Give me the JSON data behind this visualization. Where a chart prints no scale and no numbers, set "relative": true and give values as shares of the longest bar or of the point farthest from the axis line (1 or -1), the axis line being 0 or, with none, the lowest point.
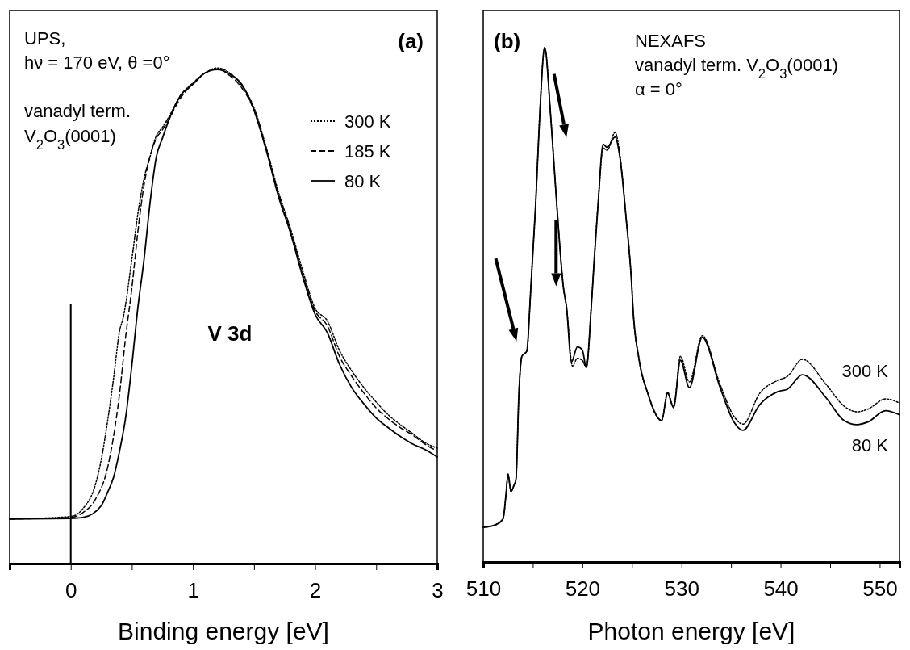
{
  "chart_data": [
    {
      "type": "line",
      "relative": true,
      "xlabel": "Binding energy [eV]",
      "xlim": [
        -0.5,
        3
      ],
      "xticks": [
        {
          "value": -0.5,
          "label": null
        },
        0,
        {
          "value": 0.5,
          "label": null
        },
        1,
        {
          "value": 1.5,
          "label": null
        },
        2,
        {
          "value": 2.5,
          "label": null
        },
        3
      ],
      "legend": "top right",
      "annotations": [
        "UPS,",
        "hν = 170 eV, θ =0°",
        "vanadyl term.",
        "V$_{2}$O$_{3}$(0001)",
        "(a)",
        "V 3d"
      ],
      "ref_lines": [
        {
          "axis": "x",
          "value": 0
        }
      ],
      "series": [
        {
          "name": "300 K",
          "color": "#000000",
          "line_style": "dotted",
          "x": [
            -0.5,
            0,
            0.1,
            0.2,
            0.25,
            0.3,
            0.35,
            0.4,
            0.43,
            0.5,
            0.55,
            0.6,
            0.65,
            0.7,
            0.75,
            0.8,
            0.9,
            1.0,
            1.1,
            1.2,
            1.3,
            1.4,
            1.5,
            1.6,
            1.7,
            1.8,
            1.9,
            2.0,
            2.1,
            2.2,
            2.3,
            2.4,
            2.5,
            2.6,
            2.7,
            2.8,
            2.9,
            3.0
          ],
          "values": [
            0.09,
            0.095,
            0.111,
            0.158,
            0.21,
            0.285,
            0.373,
            0.47,
            0.497,
            0.614,
            0.707,
            0.777,
            0.822,
            0.863,
            0.88,
            0.9,
            0.945,
            0.97,
            0.99,
            1.0,
            0.99,
            0.965,
            0.92,
            0.84,
            0.75,
            0.675,
            0.59,
            0.515,
            0.49,
            0.43,
            0.389,
            0.355,
            0.326,
            0.3,
            0.28,
            0.262,
            0.244,
            0.233
          ]
        },
        {
          "name": "185 K",
          "color": "#000000",
          "line_style": "dashed",
          "x": [
            -0.5,
            0,
            0.1,
            0.2,
            0.3,
            0.35,
            0.4,
            0.45,
            0.5,
            0.55,
            0.6,
            0.65,
            0.7,
            0.75,
            0.8,
            0.9,
            1.0,
            1.1,
            1.2,
            1.3,
            1.4,
            1.5,
            1.6,
            1.7,
            1.8,
            1.9,
            2.0,
            2.1,
            2.2,
            2.3,
            2.4,
            2.5,
            2.6,
            2.7,
            2.8,
            2.9,
            3.0
          ],
          "values": [
            0.09,
            0.093,
            0.103,
            0.129,
            0.192,
            0.256,
            0.344,
            0.459,
            0.555,
            0.671,
            0.764,
            0.822,
            0.858,
            0.875,
            0.895,
            0.94,
            0.968,
            0.99,
            0.998,
            0.985,
            0.96,
            0.915,
            0.835,
            0.745,
            0.67,
            0.582,
            0.51,
            0.48,
            0.418,
            0.378,
            0.344,
            0.314,
            0.292,
            0.274,
            0.259,
            0.241,
            0.227
          ]
        },
        {
          "name": "80 K",
          "color": "#000000",
          "line_style": "solid",
          "x": [
            -0.5,
            0,
            0.1,
            0.25,
            0.3,
            0.35,
            0.4,
            0.45,
            0.5,
            0.55,
            0.6,
            0.65,
            0.7,
            0.75,
            0.8,
            0.9,
            1.0,
            1.1,
            1.2,
            1.3,
            1.4,
            1.5,
            1.6,
            1.7,
            1.8,
            1.9,
            2.0,
            2.1,
            2.2,
            2.3,
            2.4,
            2.5,
            2.6,
            2.7,
            2.8,
            2.9,
            3.0
          ],
          "values": [
            0.09,
            0.091,
            0.093,
            0.117,
            0.143,
            0.174,
            0.228,
            0.296,
            0.4,
            0.518,
            0.614,
            0.73,
            0.82,
            0.858,
            0.893,
            0.945,
            0.967,
            0.99,
            0.997,
            0.988,
            0.967,
            0.915,
            0.834,
            0.741,
            0.666,
            0.578,
            0.503,
            0.466,
            0.402,
            0.355,
            0.322,
            0.294,
            0.274,
            0.256,
            0.241,
            0.23,
            0.215
          ]
        }
      ]
    },
    {
      "type": "line",
      "relative": true,
      "xlabel": "Photon energy [eV]",
      "xlim": [
        510,
        552
      ],
      "xticks": [
        510,
        {
          "value": 515,
          "label": null
        },
        520,
        {
          "value": 525,
          "label": null
        },
        530,
        {
          "value": 535,
          "label": null
        },
        540,
        {
          "value": 545,
          "label": null
        },
        550
      ],
      "legend": false,
      "annotations": [
        "(b)",
        "NEXAFS",
        "vanadyl term. V$_{2}$O$_{3}$(0001)",
        "α = 0°"
      ],
      "series": [
        {
          "name": "300 K",
          "color": "#000000",
          "line_style": "dotted",
          "x": [
            510,
            511.2,
            512,
            512.3,
            512.5,
            512.8,
            513.1,
            513.3,
            513.6,
            513.9,
            514.4,
            514.7,
            514.8,
            515.3,
            515.7,
            516.2,
            516.8,
            517.4,
            518.1,
            518.4,
            519,
            519.5,
            520,
            520.4,
            520.9,
            521.2,
            521.6,
            522.1,
            522.5,
            523.3,
            523.8,
            524.4,
            525,
            525.1,
            525.7,
            526.6,
            528,
            528.6,
            529.2,
            529.9,
            530.8,
            532.1,
            533.9,
            535.3,
            536.2,
            537.9,
            539.7,
            540.7,
            542.2,
            544.6,
            546.4,
            547.7,
            548.8,
            550.6,
            552
          ],
          "values": [
            0.0675,
            0.072,
            0.084,
            0.132,
            0.171,
            0.137,
            0.149,
            0.16,
            0.328,
            0.4,
            0.41,
            0.496,
            0.532,
            0.7,
            0.868,
            1.0,
            0.868,
            0.7,
            0.532,
            0.496,
            0.381,
            0.396,
            0.392,
            0.378,
            0.496,
            0.588,
            0.7,
            0.805,
            0.8,
            0.835,
            0.79,
            0.672,
            0.532,
            0.496,
            0.396,
            0.328,
            0.275,
            0.33,
            0.302,
            0.4,
            0.35,
            0.44,
            0.345,
            0.283,
            0.268,
            0.328,
            0.353,
            0.361,
            0.394,
            0.345,
            0.303,
            0.292,
            0.297,
            0.317,
            0.309
          ]
        },
        {
          "name": "80 K",
          "color": "#000000",
          "line_style": "solid",
          "x": [
            510,
            511.2,
            512,
            512.3,
            512.5,
            512.8,
            513.1,
            513.3,
            513.6,
            513.9,
            514.4,
            514.7,
            514.8,
            515.3,
            515.7,
            516.2,
            516.8,
            517.4,
            518.1,
            518.4,
            518.9,
            519.5,
            520,
            520.4,
            520.9,
            521.2,
            521.6,
            522.1,
            522.5,
            523.3,
            523.8,
            524.4,
            525,
            525.1,
            525.7,
            526.6,
            528,
            528.6,
            529.2,
            529.9,
            530.8,
            532.1,
            533.9,
            535.3,
            536.2,
            537.9,
            539.7,
            540.7,
            542.2,
            544.6,
            546.4,
            547.7,
            548.8,
            550.6,
            552
          ],
          "values": [
            0.0675,
            0.072,
            0.084,
            0.132,
            0.171,
            0.137,
            0.149,
            0.16,
            0.328,
            0.4,
            0.41,
            0.496,
            0.532,
            0.7,
            0.868,
            1.0,
            0.868,
            0.7,
            0.532,
            0.496,
            0.389,
            0.418,
            0.412,
            0.378,
            0.496,
            0.588,
            0.7,
            0.812,
            0.806,
            0.826,
            0.785,
            0.672,
            0.532,
            0.496,
            0.396,
            0.328,
            0.275,
            0.328,
            0.3,
            0.392,
            0.339,
            0.437,
            0.339,
            0.272,
            0.256,
            0.306,
            0.331,
            0.336,
            0.364,
            0.319,
            0.275,
            0.267,
            0.272,
            0.294,
            0.286
          ]
        }
      ]
    }
  ]
}
